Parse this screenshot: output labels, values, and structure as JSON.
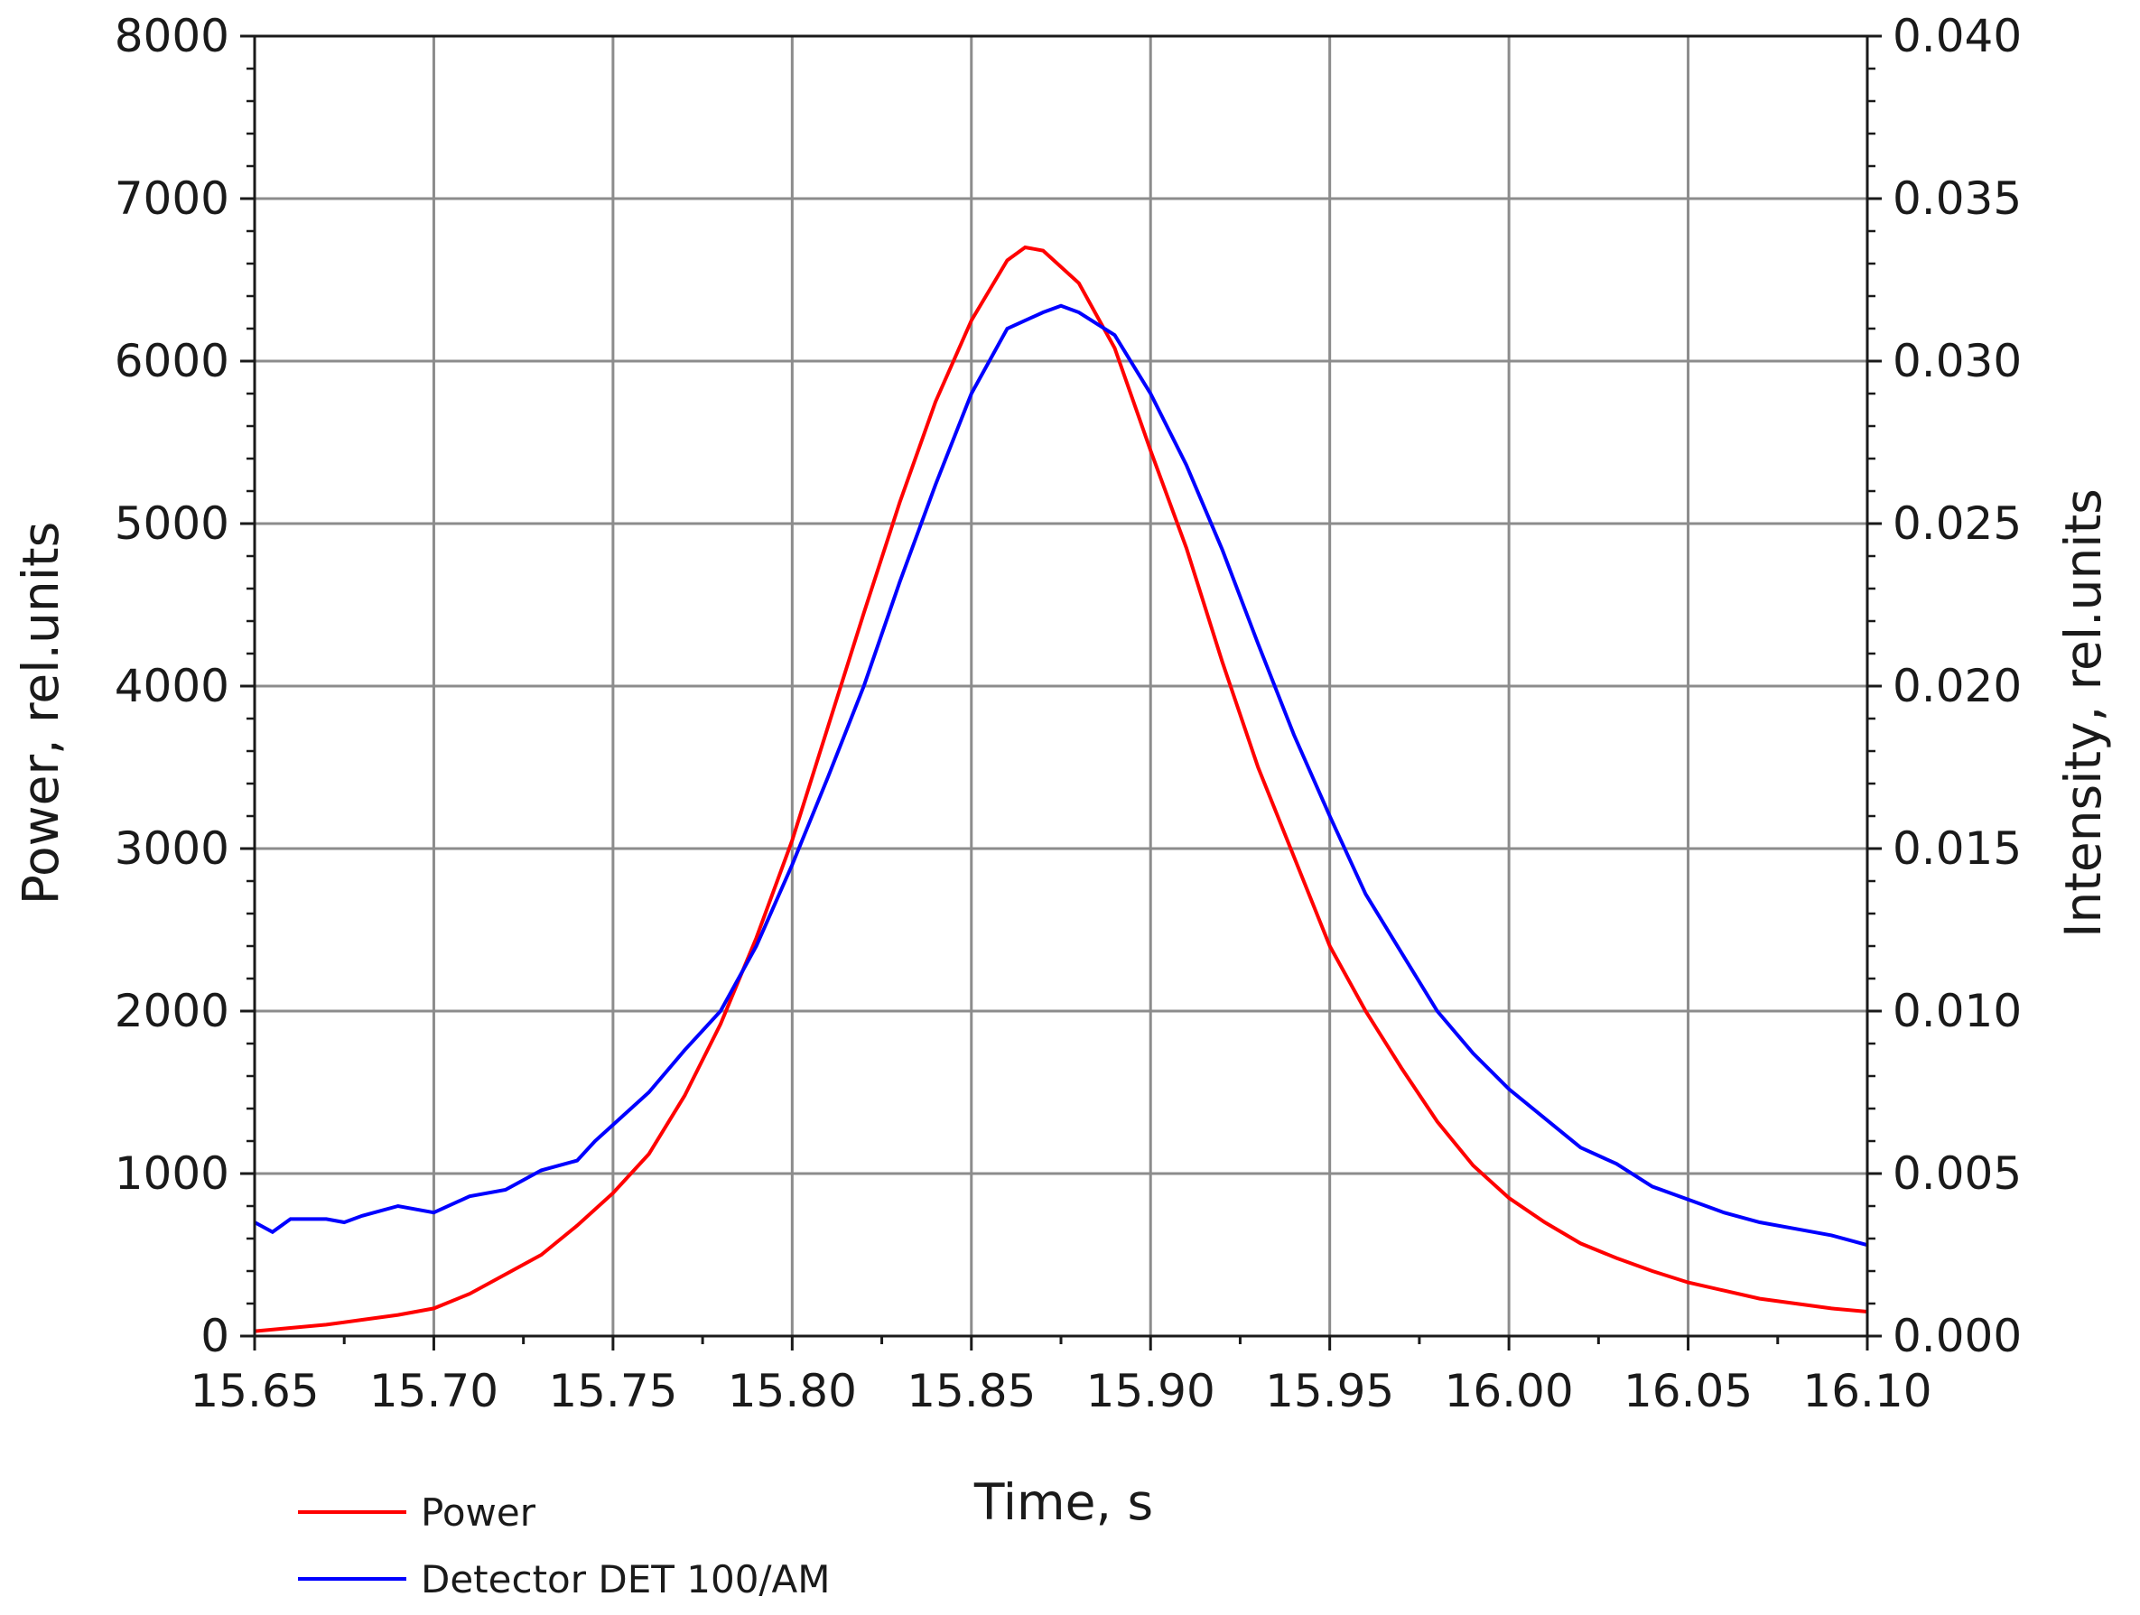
{
  "chart_data": {
    "type": "line",
    "title": "",
    "xlabel": "Time, s",
    "ylabel_left": "Power, rel.units",
    "ylabel_right": "Intensity, rel.units",
    "xlim": [
      15.65,
      16.1
    ],
    "ylim_left": [
      0,
      8000
    ],
    "ylim_right": [
      0,
      0.04
    ],
    "x_ticks": [
      "15.65",
      "15.70",
      "15.75",
      "15.80",
      "15.85",
      "15.90",
      "15.95",
      "16.00",
      "16.05",
      "16.10"
    ],
    "y_left_ticks": [
      "0",
      "1000",
      "2000",
      "3000",
      "4000",
      "5000",
      "6000",
      "7000",
      "8000"
    ],
    "y_right_ticks": [
      "0.000",
      "0.005",
      "0.010",
      "0.015",
      "0.020",
      "0.025",
      "0.030",
      "0.035",
      "0.040"
    ],
    "grid": true,
    "legend_position": "bottom-left",
    "series": [
      {
        "name": "Power",
        "axis": "left",
        "color": "#ff0000",
        "x": [
          15.65,
          15.66,
          15.67,
          15.68,
          15.69,
          15.7,
          15.71,
          15.72,
          15.73,
          15.74,
          15.75,
          15.76,
          15.77,
          15.78,
          15.79,
          15.8,
          15.81,
          15.82,
          15.83,
          15.84,
          15.85,
          15.86,
          15.865,
          15.87,
          15.88,
          15.89,
          15.9,
          15.91,
          15.92,
          15.93,
          15.94,
          15.95,
          15.96,
          15.97,
          15.98,
          15.99,
          16.0,
          16.01,
          16.02,
          16.03,
          16.04,
          16.05,
          16.06,
          16.07,
          16.08,
          16.09,
          16.1
        ],
        "y": [
          30,
          50,
          70,
          100,
          130,
          170,
          260,
          380,
          500,
          680,
          880,
          1120,
          1480,
          1920,
          2450,
          3050,
          3750,
          4450,
          5130,
          5750,
          6250,
          6620,
          6700,
          6680,
          6480,
          6080,
          5450,
          4850,
          4150,
          3500,
          2950,
          2400,
          2000,
          1650,
          1320,
          1050,
          850,
          700,
          570,
          480,
          400,
          330,
          280,
          230,
          200,
          170,
          150
        ]
      },
      {
        "name": "Detector DET 100/AM",
        "axis": "right",
        "color": "#0000ff",
        "x": [
          15.65,
          15.655,
          15.66,
          15.67,
          15.675,
          15.68,
          15.69,
          15.7,
          15.71,
          15.72,
          15.73,
          15.74,
          15.745,
          15.75,
          15.76,
          15.77,
          15.78,
          15.79,
          15.8,
          15.81,
          15.82,
          15.83,
          15.84,
          15.85,
          15.86,
          15.87,
          15.875,
          15.88,
          15.89,
          15.9,
          15.91,
          15.92,
          15.93,
          15.94,
          15.95,
          15.96,
          15.97,
          15.98,
          15.99,
          16.0,
          16.01,
          16.02,
          16.03,
          16.04,
          16.05,
          16.06,
          16.07,
          16.08,
          16.09,
          16.1
        ],
        "y": [
          0.0035,
          0.0032,
          0.0036,
          0.0036,
          0.0035,
          0.0037,
          0.004,
          0.0038,
          0.0043,
          0.0045,
          0.0051,
          0.0054,
          0.006,
          0.0065,
          0.0075,
          0.0088,
          0.01,
          0.012,
          0.0145,
          0.0172,
          0.02,
          0.0232,
          0.0262,
          0.029,
          0.031,
          0.0315,
          0.0317,
          0.0315,
          0.0308,
          0.029,
          0.0268,
          0.0242,
          0.0213,
          0.0185,
          0.016,
          0.0136,
          0.0118,
          0.01,
          0.0087,
          0.0076,
          0.0067,
          0.0058,
          0.0053,
          0.0046,
          0.0042,
          0.0038,
          0.0035,
          0.0033,
          0.0031,
          0.0028
        ]
      }
    ]
  }
}
